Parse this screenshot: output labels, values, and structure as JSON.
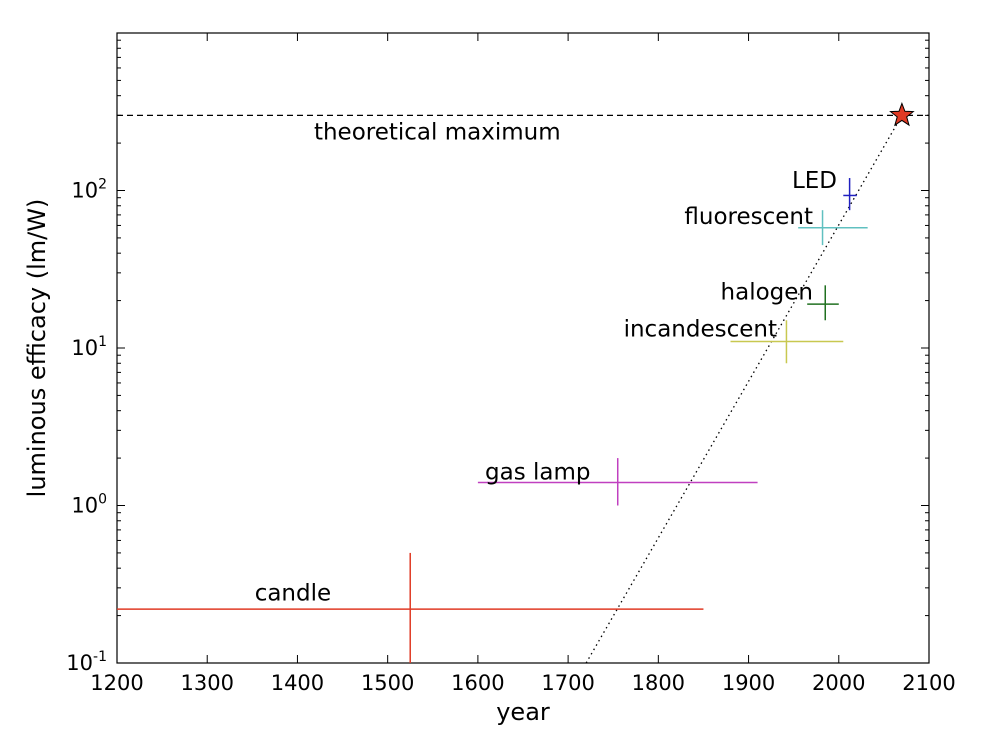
{
  "chart_data": {
    "type": "scatter",
    "xlabel": "year",
    "ylabel": "luminous efficacy (lm/W)",
    "xlim": [
      1200,
      2100
    ],
    "ylim": [
      0.1,
      1000
    ],
    "yscale": "log",
    "grid": false,
    "xticks": [
      1200,
      1300,
      1400,
      1500,
      1600,
      1700,
      1800,
      1900,
      2000,
      2100
    ],
    "yticks": [
      {
        "value": 0.1,
        "base": "10",
        "exp": "-1"
      },
      {
        "value": 1,
        "base": "10",
        "exp": "0"
      },
      {
        "value": 10,
        "base": "10",
        "exp": "1"
      },
      {
        "value": 100,
        "base": "10",
        "exp": "2"
      }
    ],
    "theoretical_max": {
      "value": 300,
      "label": "theoretical maximum",
      "x": 2070,
      "color": "#e03a24"
    },
    "trend_line": {
      "from": [
        1720,
        0.1
      ],
      "to": [
        2070,
        300
      ]
    },
    "series": [
      {
        "name": "candle",
        "x": 1525,
        "y": 0.22,
        "xerr": [
          1200,
          1850
        ],
        "yerr": [
          0.1,
          0.5
        ],
        "color": "#e03a24"
      },
      {
        "name": "gas lamp",
        "x": 1755,
        "y": 1.4,
        "xerr": [
          1600,
          1910
        ],
        "yerr": [
          1.0,
          2.0
        ],
        "color": "#c040c0"
      },
      {
        "name": "incandescent",
        "x": 1942,
        "y": 11,
        "xerr": [
          1880,
          2005
        ],
        "yerr": [
          8,
          15
        ],
        "color": "#c8c850"
      },
      {
        "name": "halogen",
        "x": 1985,
        "y": 19,
        "xerr": [
          1965,
          2000
        ],
        "yerr": [
          15,
          25
        ],
        "color": "#207020"
      },
      {
        "name": "fluorescent",
        "x": 1982,
        "y": 58,
        "xerr": [
          1955,
          2032
        ],
        "yerr": [
          45,
          75
        ],
        "color": "#60c0c0"
      },
      {
        "name": "LED",
        "x": 2012,
        "y": 93,
        "xerr": [
          2005,
          2020
        ],
        "yerr": [
          75,
          120
        ],
        "color": "#2020c0"
      }
    ]
  }
}
